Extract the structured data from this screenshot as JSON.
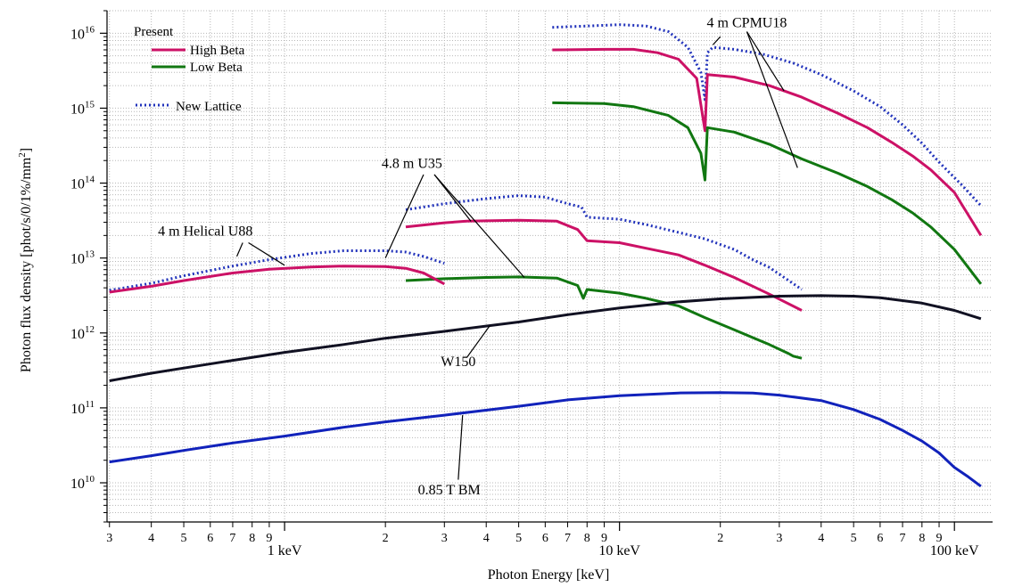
{
  "chart_data": {
    "type": "line",
    "x_scale": "log",
    "y_scale": "log",
    "xlim": [
      0.295,
      130
    ],
    "ylim": [
      3000000000,
      20000000000000000
    ],
    "grid": true,
    "xlabel": "Photon Energy [keV]",
    "ylabel_main": "Photon flux density [phot/s/0/1%/mm",
    "ylabel_sup": "2",
    "ylabel_close": "]",
    "x_major_ticks": [
      {
        "value": 1,
        "label": "1 keV"
      },
      {
        "value": 10,
        "label": "10 keV"
      },
      {
        "value": 100,
        "label": "100 keV"
      }
    ],
    "x_minor_ticks": [
      {
        "value": 0.3,
        "label": "3"
      },
      {
        "value": 0.4,
        "label": "4"
      },
      {
        "value": 0.5,
        "label": "5"
      },
      {
        "value": 0.6,
        "label": "6"
      },
      {
        "value": 0.7,
        "label": "7"
      },
      {
        "value": 0.8,
        "label": "8"
      },
      {
        "value": 0.9,
        "label": "9"
      },
      {
        "value": 2,
        "label": "2"
      },
      {
        "value": 3,
        "label": "3"
      },
      {
        "value": 4,
        "label": "4"
      },
      {
        "value": 5,
        "label": "5"
      },
      {
        "value": 6,
        "label": "6"
      },
      {
        "value": 7,
        "label": "7"
      },
      {
        "value": 8,
        "label": "8"
      },
      {
        "value": 9,
        "label": "9"
      },
      {
        "value": 20,
        "label": "2"
      },
      {
        "value": 30,
        "label": "3"
      },
      {
        "value": 40,
        "label": "4"
      },
      {
        "value": 50,
        "label": "5"
      },
      {
        "value": 60,
        "label": "6"
      },
      {
        "value": 70,
        "label": "7"
      },
      {
        "value": 80,
        "label": "8"
      },
      {
        "value": 90,
        "label": "9"
      }
    ],
    "y_ticks": [
      {
        "exp": 10,
        "base": "10",
        "sup": "10"
      },
      {
        "exp": 11,
        "base": "10",
        "sup": "11"
      },
      {
        "exp": 12,
        "base": "10",
        "sup": "12"
      },
      {
        "exp": 13,
        "base": "10",
        "sup": "13"
      },
      {
        "exp": 14,
        "base": "10",
        "sup": "14"
      },
      {
        "exp": 15,
        "base": "10",
        "sup": "15"
      },
      {
        "exp": 16,
        "base": "10",
        "sup": "16"
      }
    ],
    "legend": {
      "position": "top-left",
      "title": "Present",
      "entries": [
        {
          "label": "High Beta",
          "color": "#cc1166",
          "style": "solid"
        },
        {
          "label": "Low Beta",
          "color": "#117711",
          "style": "solid"
        },
        {
          "label": "New Lattice",
          "color": "#2233bb",
          "style": "dotted"
        }
      ]
    },
    "annotations": [
      {
        "text": "4 m CPMU18",
        "x": 24,
        "y": 1.2e+16
      },
      {
        "text": "4.8 m U35",
        "x": 2.4,
        "y": 160000000000000.0
      },
      {
        "text": "4 m Helical U88",
        "x": 0.58,
        "y": 20000000000000.0
      },
      {
        "text": "W150",
        "x": 3.3,
        "y": 360000000000.0
      },
      {
        "text": "0.85 T BM",
        "x": 3.1,
        "y": 7000000000.0
      }
    ],
    "series": [
      {
        "color": "#2233bb",
        "style": "dotted",
        "points": [
          [
            6.3,
            1.2e+16
          ],
          [
            8,
            1.25e+16
          ],
          [
            10,
            1.3e+16
          ],
          [
            12,
            1.25e+16
          ],
          [
            14,
            1.05e+16
          ],
          [
            16,
            6500000000000000.0
          ],
          [
            17.5,
            3000000000000000.0
          ],
          [
            18,
            1300000000000000.0
          ],
          [
            18.3,
            5500000000000000.0
          ],
          [
            19,
            6500000000000000.0
          ],
          [
            22,
            6100000000000000.0
          ],
          [
            27,
            5200000000000000.0
          ],
          [
            33,
            4000000000000000.0
          ],
          [
            40,
            2800000000000000.0
          ],
          [
            50,
            1700000000000000.0
          ],
          [
            60,
            1050000000000000.0
          ],
          [
            70,
            600000000000000.0
          ],
          [
            80,
            340000000000000.0
          ],
          [
            90,
            190000000000000.0
          ],
          [
            105,
            95000000000000.0
          ],
          [
            120,
            50000000000000.0
          ]
        ]
      },
      {
        "color": "#cc1166",
        "style": "solid",
        "points": [
          [
            6.3,
            6000000000000000.0
          ],
          [
            9,
            6100000000000000.0
          ],
          [
            11,
            6100000000000000.0
          ],
          [
            13,
            5500000000000000.0
          ],
          [
            15,
            4500000000000000.0
          ],
          [
            17,
            2500000000000000.0
          ],
          [
            18,
            500000000000000.0
          ],
          [
            18.3,
            2800000000000000.0
          ],
          [
            22,
            2600000000000000.0
          ],
          [
            28,
            2000000000000000.0
          ],
          [
            35,
            1400000000000000.0
          ],
          [
            45,
            850000000000000.0
          ],
          [
            55,
            550000000000000.0
          ],
          [
            65,
            350000000000000.0
          ],
          [
            75,
            230000000000000.0
          ],
          [
            85,
            150000000000000.0
          ],
          [
            100,
            75000000000000.0
          ],
          [
            120,
            20000000000000.0
          ]
        ]
      },
      {
        "color": "#117711",
        "style": "solid",
        "points": [
          [
            6.3,
            1180000000000000.0
          ],
          [
            9,
            1150000000000000.0
          ],
          [
            11,
            1050000000000000.0
          ],
          [
            14,
            800000000000000.0
          ],
          [
            16,
            550000000000000.0
          ],
          [
            17.5,
            250000000000000.0
          ],
          [
            18,
            110000000000000.0
          ],
          [
            18.3,
            550000000000000.0
          ],
          [
            22,
            480000000000000.0
          ],
          [
            28,
            330000000000000.0
          ],
          [
            35,
            210000000000000.0
          ],
          [
            45,
            135000000000000.0
          ],
          [
            55,
            90000000000000.0
          ],
          [
            65,
            60000000000000.0
          ],
          [
            75,
            40000000000000.0
          ],
          [
            85,
            26000000000000.0
          ],
          [
            100,
            13000000000000.0
          ],
          [
            120,
            4500000000000.0
          ]
        ]
      },
      {
        "color": "#2233bb",
        "style": "dotted",
        "points": [
          [
            2.3,
            44000000000000.0
          ],
          [
            3,
            53000000000000.0
          ],
          [
            4,
            62000000000000.0
          ],
          [
            5,
            68000000000000.0
          ],
          [
            6,
            65000000000000.0
          ],
          [
            7,
            53000000000000.0
          ],
          [
            7.7,
            48000000000000.0
          ],
          [
            8,
            35000000000000.0
          ],
          [
            10,
            33000000000000.0
          ],
          [
            12,
            28000000000000.0
          ],
          [
            15,
            22000000000000.0
          ],
          [
            18,
            18000000000000.0
          ],
          [
            22,
            13000000000000.0
          ],
          [
            25,
            9500000000000.0
          ],
          [
            28,
            7500000000000.0
          ],
          [
            32,
            5000000000000.0
          ],
          [
            35,
            3800000000000.0
          ]
        ]
      },
      {
        "color": "#cc1166",
        "style": "solid",
        "points": [
          [
            2.3,
            26000000000000.0
          ],
          [
            3,
            29500000000000.0
          ],
          [
            3.5,
            31000000000000.0
          ],
          [
            5,
            32000000000000.0
          ],
          [
            6.5,
            31000000000000.0
          ],
          [
            7.5,
            24000000000000.0
          ],
          [
            8,
            17000000000000.0
          ],
          [
            10,
            16000000000000.0
          ],
          [
            12,
            13500000000000.0
          ],
          [
            15,
            11000000000000.0
          ],
          [
            18,
            8000000000000.0
          ],
          [
            22,
            5500000000000.0
          ],
          [
            28,
            3300000000000.0
          ],
          [
            35,
            2000000000000.0
          ]
        ]
      },
      {
        "color": "#117711",
        "style": "solid",
        "points": [
          [
            2.3,
            5000000000000.0
          ],
          [
            3,
            5300000000000.0
          ],
          [
            4,
            5500000000000.0
          ],
          [
            5,
            5600000000000.0
          ],
          [
            6.5,
            5400000000000.0
          ],
          [
            7.5,
            4300000000000.0
          ],
          [
            7.8,
            2900000000000.0
          ],
          [
            8,
            3800000000000.0
          ],
          [
            10,
            3400000000000.0
          ],
          [
            12,
            2900000000000.0
          ],
          [
            15,
            2300000000000.0
          ],
          [
            18,
            1600000000000.0
          ],
          [
            22,
            1100000000000.0
          ],
          [
            28,
            700000000000.0
          ],
          [
            32,
            530000000000.0
          ],
          [
            33,
            490000000000.0
          ],
          [
            35,
            460000000000.0
          ]
        ]
      },
      {
        "color": "#2233bb",
        "style": "dotted",
        "points": [
          [
            0.3,
            3700000000000.0
          ],
          [
            0.4,
            4600000000000.0
          ],
          [
            0.5,
            5800000000000.0
          ],
          [
            0.7,
            7800000000000.0
          ],
          [
            0.9,
            9500000000000.0
          ],
          [
            1.2,
            11500000000000.0
          ],
          [
            1.5,
            12500000000000.0
          ],
          [
            2,
            12500000000000.0
          ],
          [
            2.3,
            12000000000000.0
          ],
          [
            2.6,
            10500000000000.0
          ],
          [
            3,
            8500000000000.0
          ]
        ]
      },
      {
        "color": "#cc1166",
        "style": "solid",
        "points": [
          [
            0.3,
            3500000000000.0
          ],
          [
            0.4,
            4200000000000.0
          ],
          [
            0.5,
            5000000000000.0
          ],
          [
            0.7,
            6300000000000.0
          ],
          [
            0.9,
            7100000000000.0
          ],
          [
            1.2,
            7600000000000.0
          ],
          [
            1.5,
            7800000000000.0
          ],
          [
            2,
            7700000000000.0
          ],
          [
            2.3,
            7300000000000.0
          ],
          [
            2.6,
            6300000000000.0
          ],
          [
            3,
            4500000000000.0
          ]
        ]
      },
      {
        "color": "#111122",
        "style": "solid",
        "points": [
          [
            0.3,
            230000000000.0
          ],
          [
            0.4,
            290000000000.0
          ],
          [
            0.5,
            340000000000.0
          ],
          [
            0.7,
            430000000000.0
          ],
          [
            1,
            550000000000.0
          ],
          [
            1.5,
            700000000000.0
          ],
          [
            2,
            850000000000.0
          ],
          [
            3,
            1050000000000.0
          ],
          [
            5,
            1400000000000.0
          ],
          [
            7,
            1750000000000.0
          ],
          [
            10,
            2150000000000.0
          ],
          [
            15,
            2600000000000.0
          ],
          [
            20,
            2850000000000.0
          ],
          [
            30,
            3100000000000.0
          ],
          [
            40,
            3150000000000.0
          ],
          [
            50,
            3100000000000.0
          ],
          [
            60,
            2950000000000.0
          ],
          [
            80,
            2500000000000.0
          ],
          [
            100,
            2000000000000.0
          ],
          [
            120,
            1550000000000.0
          ]
        ]
      },
      {
        "color": "#1122bb",
        "style": "solid",
        "points": [
          [
            0.3,
            19000000000.0
          ],
          [
            0.4,
            23000000000.0
          ],
          [
            0.5,
            27000000000.0
          ],
          [
            0.7,
            34000000000.0
          ],
          [
            1,
            42000000000.0
          ],
          [
            1.5,
            55000000000.0
          ],
          [
            2,
            65000000000.0
          ],
          [
            3,
            80000000000.0
          ],
          [
            5,
            105000000000.0
          ],
          [
            7,
            128000000000.0
          ],
          [
            10,
            145000000000.0
          ],
          [
            15,
            158000000000.0
          ],
          [
            20,
            160000000000.0
          ],
          [
            25,
            158000000000.0
          ],
          [
            30,
            148000000000.0
          ],
          [
            40,
            125000000000.0
          ],
          [
            50,
            95000000000.0
          ],
          [
            60,
            70000000000.0
          ],
          [
            70,
            50000000000.0
          ],
          [
            80,
            36000000000.0
          ],
          [
            90,
            25000000000.0
          ],
          [
            100,
            16000000000.0
          ],
          [
            110,
            12000000000.0
          ],
          [
            120,
            9000000000.0
          ]
        ]
      }
    ]
  }
}
